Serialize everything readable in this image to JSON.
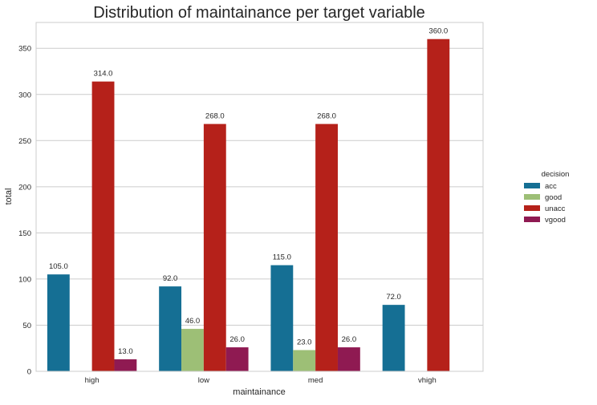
{
  "chart_data": {
    "type": "bar",
    "title": "Distribution of maintainance per target variable",
    "xlabel": "maintainance",
    "ylabel": "total",
    "categories": [
      "high",
      "low",
      "med",
      "vhigh"
    ],
    "series": [
      {
        "name": "acc",
        "color": "#156f94",
        "values": [
          105,
          92,
          115,
          72
        ]
      },
      {
        "name": "good",
        "color": "#9dbf76",
        "values": [
          0,
          46,
          23,
          0
        ]
      },
      {
        "name": "unacc",
        "color": "#b5211a",
        "values": [
          314,
          268,
          268,
          360
        ]
      },
      {
        "name": "vgood",
        "color": "#8f1a52",
        "values": [
          13,
          26,
          26,
          0
        ]
      }
    ],
    "data_labels": [
      [
        "105.0",
        "92.0",
        "115.0",
        "72.0"
      ],
      [
        "",
        "46.0",
        "23.0",
        ""
      ],
      [
        "314.0",
        "268.0",
        "268.0",
        "360.0"
      ],
      [
        "13.0",
        "26.0",
        "26.0",
        ""
      ]
    ],
    "ylim": [
      0,
      378
    ],
    "yticks": [
      0,
      50,
      100,
      150,
      200,
      250,
      300,
      350
    ],
    "grid": true,
    "legend_title": "decision",
    "legend_position": "right"
  }
}
